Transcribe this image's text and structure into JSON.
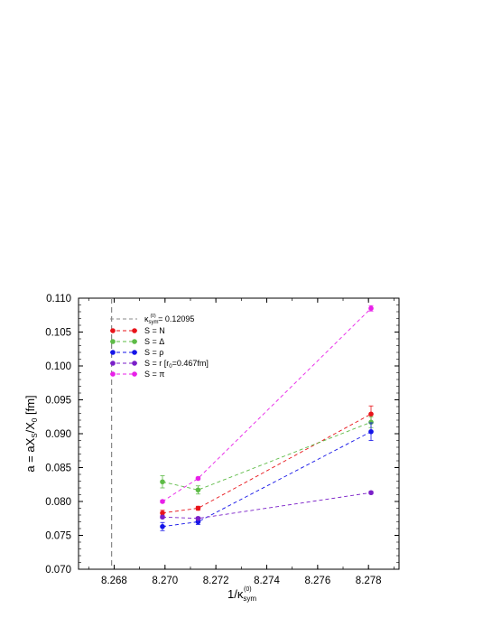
{
  "chart_data": {
    "type": "scatter",
    "xlabel": "1/κsym(0)",
    "xlabel_main": "1/κ",
    "xlabel_sub": "sym",
    "xlabel_sup": "(0)",
    "ylabel": "a = aXS/X0 [fm]",
    "ylabel_parts": [
      "a = aX",
      "S",
      "/X",
      "0",
      " [fm]"
    ],
    "xlim": [
      8.2666,
      8.2792
    ],
    "ylim": [
      0.07,
      0.11
    ],
    "x_ticks": [
      8.268,
      8.27,
      8.272,
      8.274,
      8.276,
      8.278
    ],
    "y_ticks": [
      0.07,
      0.075,
      0.08,
      0.085,
      0.09,
      0.095,
      0.1,
      0.105,
      0.11
    ],
    "x_tick_labels": [
      "8.268",
      "8.270",
      "8.272",
      "8.274",
      "8.276",
      "8.278"
    ],
    "y_tick_labels": [
      "0.070",
      "0.075",
      "0.080",
      "0.085",
      "0.090",
      "0.095",
      "0.100",
      "0.105",
      "0.110"
    ],
    "legend_position": "top-left",
    "grid": false,
    "vline": {
      "x": 8.2679,
      "label_main": "κ",
      "label_sub": "sym",
      "label_sup": "(0)",
      "label_value": " = 0.12095",
      "color": "#888888"
    },
    "series": [
      {
        "name": "S = N",
        "color": "#e8141a",
        "x": [
          8.2699,
          8.2713,
          8.2781
        ],
        "y": [
          0.0783,
          0.079,
          0.0929
        ],
        "yerr": [
          0.0004,
          0.0003,
          0.0012
        ]
      },
      {
        "name": "S = Δ",
        "color": "#5dbb46",
        "x": [
          8.2699,
          8.2713,
          8.2781
        ],
        "y": [
          0.0829,
          0.0817,
          0.0917
        ],
        "yerr": [
          0.0009,
          0.0006,
          0.0008
        ]
      },
      {
        "name": "S = ρ",
        "color": "#1414e8",
        "x": [
          8.2699,
          8.2713,
          8.2781
        ],
        "y": [
          0.0763,
          0.077,
          0.0903
        ],
        "yerr": [
          0.0006,
          0.0004,
          0.0013
        ]
      },
      {
        "name": "S = r [r0=0.467fm]",
        "name_parts": [
          "S = r [r",
          "0",
          "=0.467fm]"
        ],
        "color": "#7a1fc8",
        "x": [
          8.2699,
          8.2713,
          8.2781
        ],
        "y": [
          0.0777,
          0.0775,
          0.0813
        ],
        "yerr": [
          0.0002,
          0.0002,
          0.0002
        ]
      },
      {
        "name": "S = π",
        "color": "#e820e8",
        "x": [
          8.2699,
          8.2713,
          8.2781
        ],
        "y": [
          0.08,
          0.0834,
          0.1085
        ],
        "yerr": [
          0.0002,
          0.0002,
          0.0004
        ]
      }
    ]
  }
}
